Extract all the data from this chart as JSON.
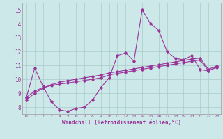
{
  "xlabel": "Windchill (Refroidissement éolien,°C)",
  "xlim": [
    -0.5,
    23.5
  ],
  "ylim": [
    7.5,
    15.5
  ],
  "xticks": [
    0,
    1,
    2,
    3,
    4,
    5,
    6,
    7,
    8,
    9,
    10,
    11,
    12,
    13,
    14,
    15,
    16,
    17,
    18,
    19,
    20,
    21,
    22,
    23
  ],
  "yticks": [
    8,
    9,
    10,
    11,
    12,
    13,
    14,
    15
  ],
  "bg_color": "#cce8e8",
  "line_color": "#993399",
  "grid_color": "#aacccc",
  "line1_x": [
    0,
    1,
    2,
    3,
    4,
    5,
    6,
    7,
    8,
    9,
    10,
    11,
    12,
    13,
    14,
    15,
    16,
    17,
    18,
    19,
    20,
    21,
    22,
    23
  ],
  "line1_y": [
    8.7,
    10.8,
    9.5,
    8.4,
    7.8,
    7.7,
    7.9,
    8.0,
    8.5,
    9.4,
    10.1,
    11.7,
    11.9,
    11.3,
    15.0,
    14.0,
    13.5,
    12.0,
    11.5,
    11.4,
    11.7,
    10.7,
    10.6,
    10.9
  ],
  "line2_x": [
    0,
    1,
    2,
    3,
    4,
    5,
    6,
    7,
    8,
    9,
    10,
    11,
    12,
    13,
    14,
    15,
    16,
    17,
    18,
    19,
    20,
    21,
    22,
    23
  ],
  "line2_y": [
    8.7,
    9.15,
    9.4,
    9.55,
    9.65,
    9.73,
    9.82,
    9.91,
    10.0,
    10.1,
    10.3,
    10.42,
    10.52,
    10.62,
    10.72,
    10.82,
    10.92,
    11.0,
    11.1,
    11.2,
    11.3,
    11.38,
    10.62,
    10.85
  ],
  "line3_x": [
    0,
    1,
    2,
    3,
    4,
    5,
    6,
    7,
    8,
    9,
    10,
    11,
    12,
    13,
    14,
    15,
    16,
    17,
    18,
    19,
    20,
    21,
    22,
    23
  ],
  "line3_y": [
    8.5,
    9.0,
    9.35,
    9.6,
    9.78,
    9.9,
    10.0,
    10.1,
    10.2,
    10.3,
    10.45,
    10.55,
    10.65,
    10.75,
    10.85,
    10.95,
    11.05,
    11.15,
    11.25,
    11.35,
    11.45,
    11.52,
    10.72,
    10.95
  ]
}
